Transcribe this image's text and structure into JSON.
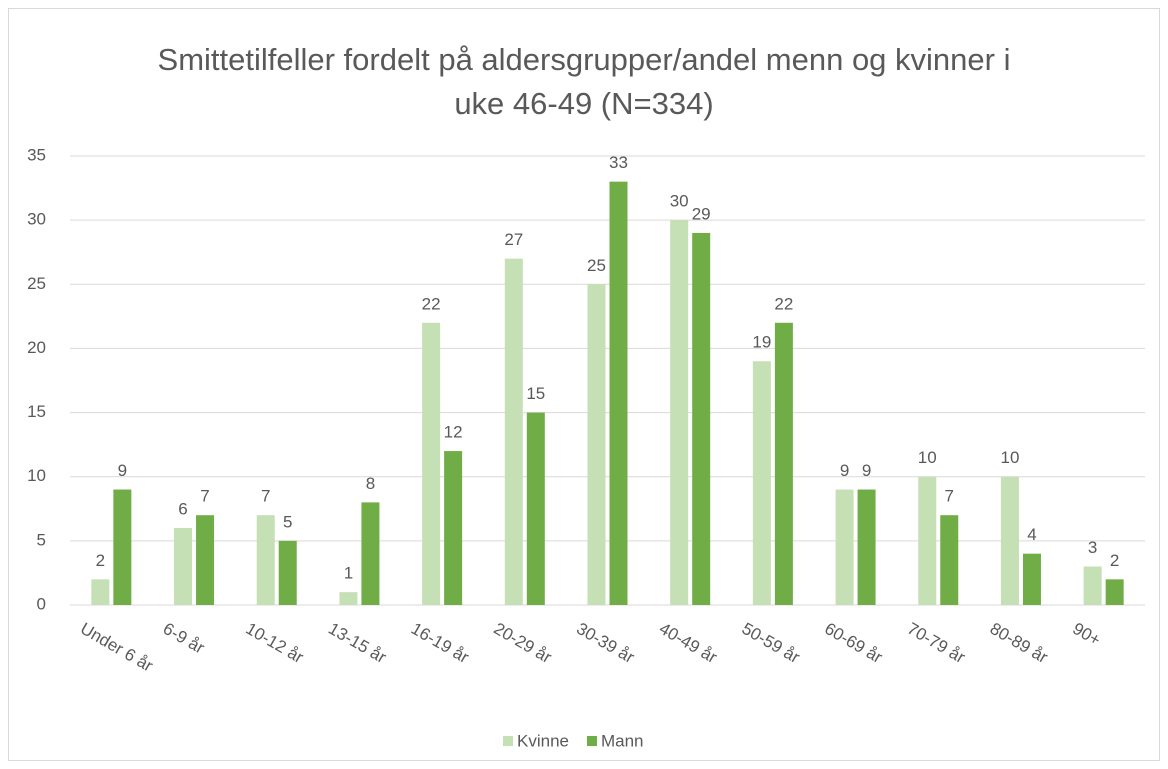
{
  "chart_data": {
    "type": "bar",
    "title": "Smittetilfeller fordelt på aldersgrupper/andel menn og kvinner i uke 46-49 (N=334)",
    "categories": [
      "Under 6 år",
      "6-9 år",
      "10-12 år",
      "13-15 år",
      "16-19 år",
      "20-29 år",
      "30-39 år",
      "40-49 år",
      "50-59 år",
      "60-69 år",
      "70-79 år",
      "80-89 år",
      "90+"
    ],
    "series": [
      {
        "name": "Kvinne",
        "color": "#c5e0b4",
        "values": [
          2,
          6,
          7,
          1,
          22,
          27,
          25,
          30,
          19,
          9,
          10,
          10,
          3
        ]
      },
      {
        "name": "Mann",
        "color": "#70ad47",
        "values": [
          9,
          7,
          5,
          8,
          12,
          15,
          33,
          29,
          22,
          9,
          7,
          4,
          2
        ]
      }
    ],
    "ylim": [
      0,
      35
    ],
    "yticks": [
      0,
      5,
      10,
      15,
      20,
      25,
      30,
      35
    ],
    "grid": true,
    "legend": "bottom"
  }
}
